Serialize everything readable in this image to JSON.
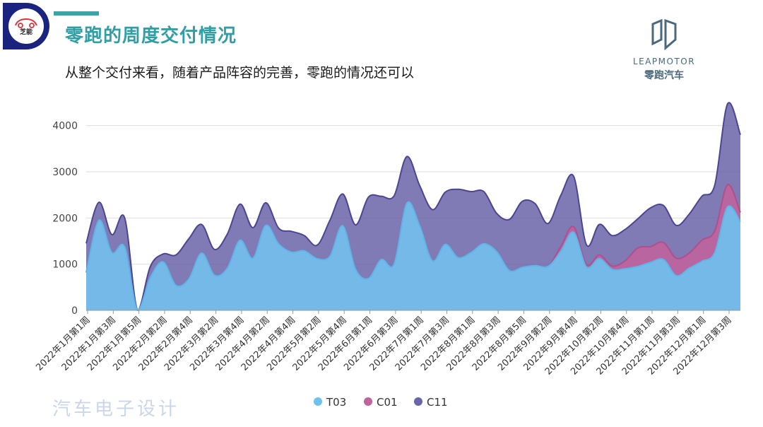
{
  "header": {
    "logo_text": "芝能",
    "title": "零跑的周度交付情况",
    "subtitle": "从整个交付来看，随着产品阵容的完善，零跑的情况还可以"
  },
  "brand": {
    "en": "LEAPMOTOR",
    "cn": "零跑汽车"
  },
  "watermark": "汽车电子设计",
  "colors": {
    "T03": "#6dc2f0",
    "C01": "#c2619c",
    "C11": "#6a64a8",
    "title": "#2f9fa5"
  },
  "chart_data": {
    "type": "area",
    "stacked": false,
    "title": "",
    "xlabel": "",
    "ylabel": "",
    "ylim": [
      0,
      4500
    ],
    "yticks": [
      0,
      1000,
      2000,
      3000,
      4000
    ],
    "grid": true,
    "legend": "bottom",
    "x_labels": [
      "2022年1月第1周",
      "2022年1月第3周",
      "2022年1月第5周",
      "2022年2月第2周",
      "2022年2月第4周",
      "2022年3月第2周",
      "2022年3月第4周",
      "2022年4月第2周",
      "2022年4月第4周",
      "2022年5月第2周",
      "2022年5月第4周",
      "2022年6月第1周",
      "2022年6月第3周",
      "2022年7月第1周",
      "2022年7月第3周",
      "2022年8月第1周",
      "2022年8月第3周",
      "2022年8月第5周",
      "2022年9月第2周",
      "2022年9月第4周",
      "2022年10月第2周",
      "2022年10月第4周",
      "2022年11月第1周",
      "2022年11月第3周",
      "2022年12月第1周",
      "2022年12月第3周"
    ],
    "series": [
      {
        "name": "C11",
        "values": [
          1450,
          2340,
          1640,
          2000,
          0,
          950,
          1220,
          1200,
          1550,
          1860,
          1320,
          1650,
          2300,
          1790,
          2330,
          1780,
          1710,
          1620,
          1410,
          1950,
          2520,
          1850,
          2450,
          2470,
          2480,
          3330,
          2700,
          2180,
          2560,
          2620,
          2570,
          2570,
          2100,
          1970,
          2360,
          2310,
          1880,
          2490,
          2900,
          1420,
          1860,
          1620,
          1750,
          1980,
          2220,
          2270,
          1840,
          2080,
          2470,
          2710,
          4470,
          3800
        ]
      },
      {
        "name": "C01",
        "values": [
          820,
          1950,
          1250,
          1370,
          0,
          710,
          1050,
          540,
          680,
          1240,
          760,
          910,
          1520,
          1130,
          1840,
          1440,
          1260,
          1290,
          1120,
          1170,
          1830,
          890,
          690,
          1100,
          1000,
          2320,
          1830,
          1070,
          1430,
          1140,
          1250,
          1440,
          1270,
          860,
          930,
          970,
          950,
          1380,
          1810,
          990,
          1200,
          960,
          1070,
          1350,
          1380,
          1470,
          1130,
          1240,
          1520,
          1720,
          2720,
          2120
        ]
      },
      {
        "name": "T03",
        "values": [
          820,
          1950,
          1250,
          1370,
          0,
          710,
          1050,
          540,
          680,
          1240,
          760,
          910,
          1520,
          1130,
          1840,
          1440,
          1260,
          1290,
          1120,
          1170,
          1830,
          890,
          690,
          1100,
          1000,
          2320,
          1830,
          1070,
          1430,
          1140,
          1250,
          1440,
          1270,
          860,
          930,
          970,
          950,
          1280,
          1690,
          940,
          1120,
          890,
          900,
          950,
          1040,
          1100,
          750,
          910,
          1060,
          1250,
          2240,
          1920
        ]
      }
    ]
  }
}
